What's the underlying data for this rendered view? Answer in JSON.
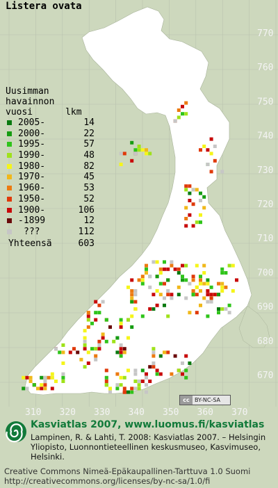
{
  "title": "Listera ovata",
  "legend": {
    "header": [
      "Uusimman",
      "havainnon",
      "vuosi      lkm"
    ],
    "rows": [
      {
        "label": "2005-",
        "count": "14",
        "color": "#0a7a10"
      },
      {
        "label": "2000-",
        "count": "22",
        "color": "#169c12"
      },
      {
        "label": "1995-",
        "count": "57",
        "color": "#2fc41a"
      },
      {
        "label": "1990-",
        "count": "48",
        "color": "#9fe21a"
      },
      {
        "label": "1980-",
        "count": "82",
        "color": "#f5f51a"
      },
      {
        "label": "1970-",
        "count": "45",
        "color": "#f0b81a"
      },
      {
        "label": "1960-",
        "count": "53",
        "color": "#ec7a10"
      },
      {
        "label": "1950-",
        "count": "52",
        "color": "#e03a0a"
      },
      {
        "label": "1900-",
        "count": "106",
        "color": "#c80a0a"
      },
      {
        "label": "-1899",
        "count": "12",
        "color": "#6a0a0a"
      },
      {
        "label": "???",
        "count": "112",
        "color": "#c6c6c6"
      }
    ],
    "total_label": "Yhteensä",
    "total_count": "603"
  },
  "axes": {
    "northing": [
      "770",
      "760",
      "750",
      "740",
      "730",
      "720",
      "710",
      "700",
      "690",
      "680",
      "670"
    ],
    "easting": [
      "310",
      "320",
      "330",
      "340",
      "350",
      "360",
      "370"
    ]
  },
  "colors": {
    "background": "#cdd8bd",
    "land": "#ffffff",
    "grid": "#b9c2af",
    "axis_text": "#f4f4f4",
    "brand": "#127a3a"
  },
  "cc_badge": {
    "cc": "cc",
    "text": "BY-NC-SA"
  },
  "footer": {
    "brand": "Kasviatlas 2007, www.luomus.fi/kasviatlas",
    "citation": "Lampinen, R. & Lahti, T. 2008: Kasviatlas 2007. – Helsingin Yliopisto, Luonnontieteellinen keskusmuseo, Kasvimuseo, Helsinki.",
    "license": "Creative Commons Nimeä-Epäkaupallinen-Tarttuva 1.0 Suomi http://creativecommons.org/licenses/by-nc-sa/1.0/fi",
    "logo_icon": "spiral-plant-icon"
  }
}
